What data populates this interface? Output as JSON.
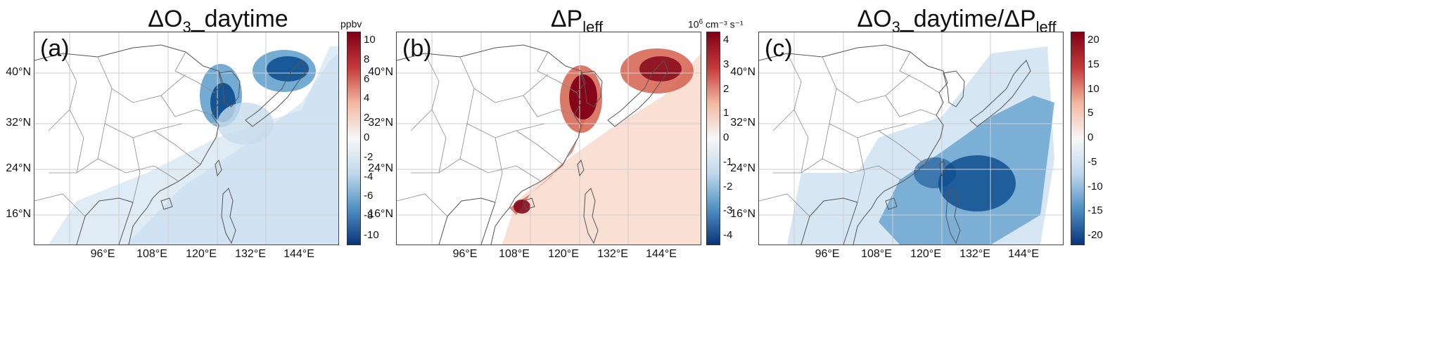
{
  "panels": [
    {
      "label": "(a)",
      "title_main": "ΔO",
      "title_sub": "3",
      "title_tail": "_daytime",
      "title_extra": "",
      "title_extra_sub": "",
      "cbar_unit": "ppbv",
      "cbar_unit_sup": "",
      "cbar_unit_tail": "",
      "cbar_ticks": [
        "10",
        "8",
        "6",
        "4",
        "2",
        "0",
        "-2",
        "-4",
        "-6",
        "-8",
        "-10"
      ],
      "scheme": "o3"
    },
    {
      "label": "(b)",
      "title_main": "ΔP",
      "title_sub": "leff",
      "title_tail": "",
      "title_extra": "",
      "title_extra_sub": "",
      "cbar_unit": "10",
      "cbar_unit_sup": "6",
      "cbar_unit_tail": " cm⁻³ s⁻¹",
      "cbar_ticks": [
        "4",
        "3",
        "2",
        "1",
        "0",
        "-1",
        "-2",
        "-3",
        "-4"
      ],
      "scheme": "pleff"
    },
    {
      "label": "(c)",
      "title_main": "ΔO",
      "title_sub": "3",
      "title_tail": "_daytime/ΔP",
      "title_extra": "",
      "title_extra_sub": "leff",
      "cbar_unit": "",
      "cbar_unit_sup": "",
      "cbar_unit_tail": "",
      "cbar_ticks": [
        "20",
        "15",
        "10",
        "5",
        "0",
        "-5",
        "-10",
        "-15",
        "-20"
      ],
      "scheme": "ratio"
    }
  ],
  "lat_ticks": [
    "40°N",
    "32°N",
    "24°N",
    "16°N"
  ],
  "lon_ticks": [
    "96°E",
    "108°E",
    "120°E",
    "132°E",
    "144°E"
  ],
  "colors": {
    "deep_red": "#7f0015",
    "mid_red": "#d6604d",
    "light_red": "#f4c4b0",
    "white": "#f7f7f7",
    "light_blue": "#c5dcee",
    "mid_blue": "#5c9ccb",
    "deep_blue": "#0a4a8c",
    "border": "#555555"
  }
}
